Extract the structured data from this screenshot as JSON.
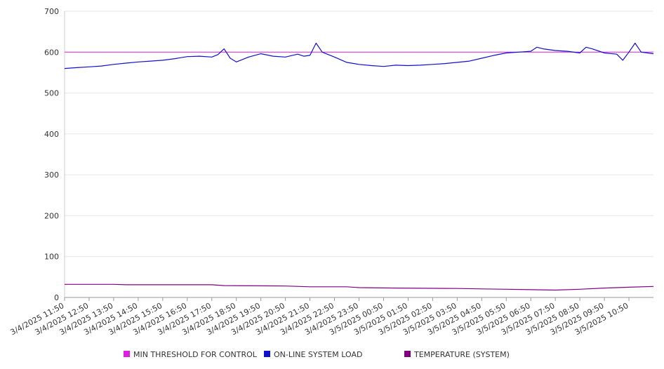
{
  "chart_data": {
    "type": "line",
    "title": "",
    "xlabel": "",
    "ylabel": "",
    "ylim": [
      0,
      700
    ],
    "y_ticks": [
      0,
      100,
      200,
      300,
      400,
      500,
      600,
      700
    ],
    "x_tick_labels": [
      "3/4/2025 11:50",
      "3/4/2025 12:50",
      "3/4/2025 13:50",
      "3/4/2025 14:50",
      "3/4/2025 15:50",
      "3/4/2025 16:50",
      "3/4/2025 17:50",
      "3/4/2025 18:50",
      "3/4/2025 19:50",
      "3/4/2025 20:50",
      "3/4/2025 21:50",
      "3/4/2025 22:50",
      "3/4/2025 23:50",
      "3/5/2025 00:50",
      "3/5/2025 01:50",
      "3/5/2025 02:50",
      "3/5/2025 03:50",
      "3/5/2025 04:50",
      "3/5/2025 05:50",
      "3/5/2025 06:50",
      "3/5/2025 07:50",
      "3/5/2025 08:50",
      "3/5/2025 09:50",
      "3/5/2025 10:50"
    ],
    "x_range": [
      "3/4/2025 11:50",
      "3/5/2025 11:50"
    ],
    "grid": {
      "horizontal": true,
      "vertical": false
    },
    "legend": "bottom",
    "series": [
      {
        "name": "MIN THRESHOLD FOR CONTROL",
        "color": "#e020e0",
        "x": [
          "3/4/2025 11:50",
          "3/5/2025 11:50"
        ],
        "values": [
          600,
          600
        ]
      },
      {
        "name": "ON-LINE SYSTEM LOAD",
        "color": "#1010d0",
        "x": [
          "3/4/2025 11:50",
          "3/4/2025 12:20",
          "3/4/2025 12:50",
          "3/4/2025 13:20",
          "3/4/2025 13:50",
          "3/4/2025 14:20",
          "3/4/2025 14:50",
          "3/4/2025 15:20",
          "3/4/2025 15:50",
          "3/4/2025 16:20",
          "3/4/2025 16:50",
          "3/4/2025 17:20",
          "3/4/2025 17:50",
          "3/4/2025 18:05",
          "3/4/2025 18:20",
          "3/4/2025 18:35",
          "3/4/2025 18:50",
          "3/4/2025 19:20",
          "3/4/2025 19:50",
          "3/4/2025 20:20",
          "3/4/2025 20:50",
          "3/4/2025 21:20",
          "3/4/2025 21:35",
          "3/4/2025 21:50",
          "3/4/2025 22:05",
          "3/4/2025 22:20",
          "3/4/2025 22:50",
          "3/4/2025 23:20",
          "3/4/2025 23:50",
          "3/5/2025 00:20",
          "3/5/2025 00:50",
          "3/5/2025 01:20",
          "3/5/2025 01:50",
          "3/5/2025 02:20",
          "3/5/2025 02:50",
          "3/5/2025 03:20",
          "3/5/2025 03:50",
          "3/5/2025 04:20",
          "3/5/2025 04:50",
          "3/5/2025 05:20",
          "3/5/2025 05:50",
          "3/5/2025 06:20",
          "3/5/2025 06:50",
          "3/5/2025 07:05",
          "3/5/2025 07:20",
          "3/5/2025 07:50",
          "3/5/2025 08:20",
          "3/5/2025 08:50",
          "3/5/2025 09:05",
          "3/5/2025 09:20",
          "3/5/2025 09:50",
          "3/5/2025 10:20",
          "3/5/2025 10:35",
          "3/5/2025 10:50",
          "3/5/2025 11:05",
          "3/5/2025 11:20",
          "3/5/2025 11:50"
        ],
        "values": [
          560,
          562,
          564,
          566,
          570,
          573,
          576,
          578,
          580,
          584,
          589,
          590,
          588,
          594,
          608,
          585,
          576,
          588,
          596,
          590,
          588,
          595,
          590,
          592,
          622,
          600,
          588,
          575,
          570,
          567,
          565,
          568,
          567,
          568,
          570,
          572,
          575,
          578,
          585,
          592,
          598,
          600,
          602,
          612,
          608,
          604,
          602,
          598,
          612,
          608,
          598,
          595,
          580,
          600,
          622,
          600,
          596
        ]
      },
      {
        "name": "TEMPERATURE (SYSTEM)",
        "color": "#800080",
        "x": [
          "3/4/2025 11:50",
          "3/4/2025 13:50",
          "3/4/2025 14:20",
          "3/4/2025 17:50",
          "3/4/2025 18:20",
          "3/4/2025 20:50",
          "3/4/2025 21:50",
          "3/4/2025 23:20",
          "3/4/2025 23:50",
          "3/5/2025 01:20",
          "3/5/2025 03:50",
          "3/5/2025 04:50",
          "3/5/2025 05:50",
          "3/5/2025 06:50",
          "3/5/2025 07:50",
          "3/5/2025 08:50",
          "3/5/2025 09:50",
          "3/5/2025 10:50",
          "3/5/2025 11:50"
        ],
        "values": [
          32,
          32,
          31,
          31,
          29,
          28,
          26,
          26,
          24,
          23,
          22,
          21,
          20,
          19,
          18,
          20,
          23,
          25,
          27
        ]
      }
    ]
  }
}
